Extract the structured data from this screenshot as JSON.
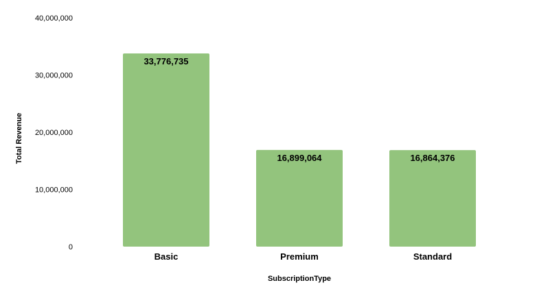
{
  "chart_data": {
    "type": "bar",
    "title": "",
    "xlabel": "SubscriptionType",
    "ylabel": "Total Revenue",
    "categories": [
      "Basic",
      "Premium",
      "Standard"
    ],
    "values": [
      33776735,
      16899064,
      16864376
    ],
    "data_labels": [
      "33,776,735",
      "16,899,064",
      "16,864,376"
    ],
    "yticks": [
      0,
      10000000,
      20000000,
      30000000,
      40000000
    ],
    "ytick_labels": [
      "0",
      "10,000,000",
      "20,000,000",
      "30,000,000",
      "40,000,000"
    ],
    "ylim": [
      0,
      40000000
    ],
    "grid": false,
    "legend": "none",
    "colors": {
      "bar": "#93c47d"
    }
  }
}
